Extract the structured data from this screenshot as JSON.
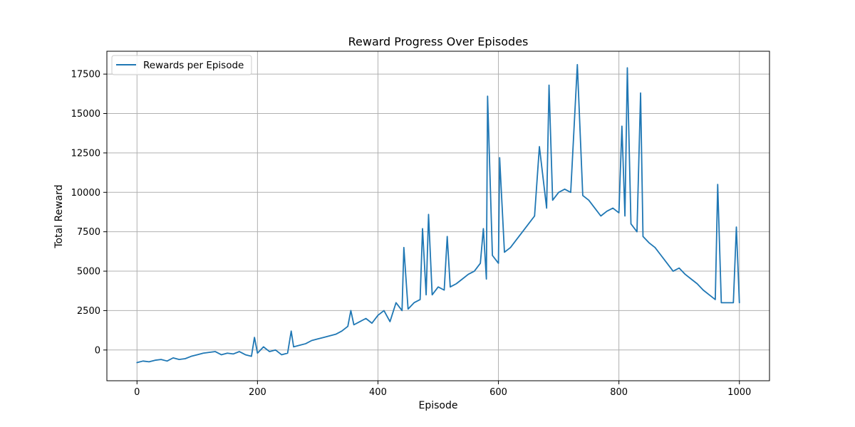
{
  "chart_data": {
    "type": "line",
    "title": "Reward Progress Over Episodes",
    "xlabel": "Episode",
    "ylabel": "Total Reward",
    "xlim": [
      -50,
      1050
    ],
    "ylim": [
      -1950,
      18950
    ],
    "x_ticks": [
      0,
      200,
      400,
      600,
      800,
      1000
    ],
    "y_ticks": [
      0,
      2500,
      5000,
      7500,
      10000,
      12500,
      15000,
      17500
    ],
    "grid": true,
    "legend_position": "top-left",
    "series": [
      {
        "name": "Rewards per Episode",
        "color": "#1f77b4",
        "x": [
          0,
          10,
          20,
          30,
          40,
          50,
          60,
          70,
          80,
          90,
          100,
          110,
          120,
          130,
          140,
          150,
          160,
          170,
          180,
          190,
          195,
          200,
          210,
          220,
          230,
          240,
          250,
          256,
          260,
          270,
          280,
          290,
          300,
          310,
          320,
          330,
          340,
          350,
          355,
          360,
          370,
          380,
          390,
          400,
          410,
          420,
          430,
          440,
          443,
          450,
          460,
          470,
          474,
          480,
          484,
          490,
          500,
          510,
          515,
          520,
          530,
          540,
          550,
          560,
          570,
          575,
          580,
          582,
          590,
          600,
          602,
          610,
          620,
          630,
          640,
          650,
          660,
          668,
          680,
          684,
          690,
          700,
          710,
          720,
          731,
          740,
          750,
          760,
          770,
          780,
          790,
          800,
          805,
          810,
          814,
          820,
          830,
          836,
          840,
          850,
          860,
          870,
          880,
          890,
          900,
          910,
          920,
          930,
          940,
          950,
          960,
          964,
          970,
          980,
          990,
          995,
          1000
        ],
        "y": [
          -800,
          -700,
          -750,
          -650,
          -600,
          -700,
          -500,
          -600,
          -550,
          -400,
          -300,
          -200,
          -150,
          -100,
          -300,
          -200,
          -250,
          -100,
          -300,
          -400,
          800,
          -200,
          200,
          -100,
          0,
          -300,
          -200,
          1200,
          200,
          300,
          400,
          600,
          700,
          800,
          900,
          1000,
          1200,
          1500,
          2500,
          1600,
          1800,
          2000,
          1700,
          2200,
          2500,
          1800,
          3000,
          2500,
          6500,
          2600,
          3000,
          3200,
          7700,
          3500,
          8600,
          3500,
          4000,
          3800,
          7200,
          4000,
          4200,
          4500,
          4800,
          5000,
          5500,
          7700,
          4500,
          16100,
          6000,
          5500,
          12200,
          6200,
          6500,
          7000,
          7500,
          8000,
          8500,
          12900,
          9000,
          16800,
          9500,
          10000,
          10200,
          10000,
          18100,
          9800,
          9500,
          9000,
          8500,
          8800,
          9000,
          8700,
          14200,
          8500,
          17900,
          8000,
          7500,
          16300,
          7200,
          6800,
          6500,
          6000,
          5500,
          5000,
          5200,
          4800,
          4500,
          4200,
          3800,
          3500,
          3200,
          10500,
          3000,
          3000,
          3000,
          7800,
          3000
        ]
      }
    ]
  }
}
